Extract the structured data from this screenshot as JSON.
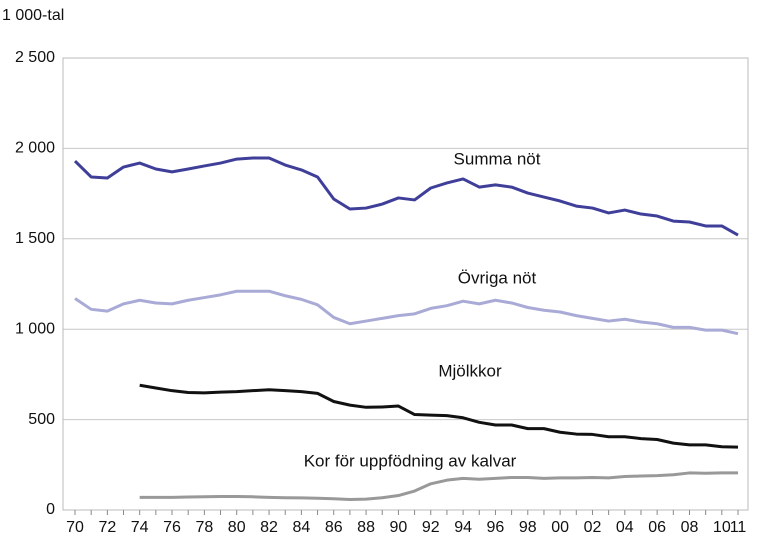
{
  "chart_data": {
    "type": "line",
    "ylabel": "1 000-tal",
    "categories": [
      "70",
      null,
      "72",
      null,
      "74",
      null,
      "76",
      null,
      "78",
      null,
      "80",
      null,
      "82",
      null,
      "84",
      null,
      "86",
      null,
      "88",
      null,
      "90",
      null,
      "92",
      null,
      "94",
      null,
      "96",
      null,
      "98",
      null,
      "00",
      null,
      "02",
      null,
      "04",
      null,
      "06",
      null,
      "08",
      null,
      "10",
      "11"
    ],
    "ylim": [
      0,
      2500
    ],
    "yticks": [
      0,
      500,
      {
        "value": 1000,
        "label": "1 000"
      },
      {
        "value": 1500,
        "label": "1 500"
      },
      {
        "value": 2000,
        "label": "2 000"
      },
      {
        "value": 2500,
        "label": "2 500"
      }
    ],
    "grid": true,
    "series": [
      {
        "name": "Summa nöt",
        "color": "#3f3f9a",
        "values": [
          1930,
          1842,
          1836,
          1897,
          1919,
          1886,
          1870,
          1886,
          1903,
          1919,
          1941,
          1947,
          1947,
          1908,
          1881,
          1842,
          1720,
          1665,
          1670,
          1692,
          1726,
          1715,
          1781,
          1809,
          1831,
          1786,
          1798,
          1786,
          1753,
          1731,
          1709,
          1681,
          1670,
          1643,
          1659,
          1637,
          1626,
          1598,
          1593,
          1571,
          1571,
          1521
        ]
      },
      {
        "name": "Övriga nöt",
        "color": "#a9abd6",
        "values": [
          1170,
          1110,
          1100,
          1140,
          1160,
          1145,
          1140,
          1160,
          1175,
          1190,
          1210,
          1210,
          1210,
          1185,
          1165,
          1135,
          1065,
          1030,
          1045,
          1060,
          1075,
          1085,
          1115,
          1130,
          1155,
          1140,
          1160,
          1145,
          1120,
          1105,
          1095,
          1075,
          1060,
          1045,
          1055,
          1040,
          1030,
          1010,
          1010,
          995,
          995,
          975
        ]
      },
      {
        "name": "Mjölkkor",
        "color": "#111111",
        "values": [
          null,
          null,
          null,
          null,
          690,
          675,
          660,
          650,
          648,
          652,
          655,
          660,
          665,
          660,
          655,
          645,
          600,
          580,
          568,
          570,
          575,
          528,
          525,
          522,
          510,
          485,
          470,
          470,
          450,
          450,
          430,
          420,
          418,
          405,
          405,
          395,
          390,
          370,
          360,
          360,
          350,
          348
        ]
      },
      {
        "name": "Kor för uppfödning av kalvar",
        "color": "#999999",
        "values": [
          null,
          null,
          null,
          null,
          70,
          70,
          70,
          72,
          73,
          75,
          75,
          73,
          70,
          68,
          67,
          65,
          62,
          58,
          60,
          68,
          80,
          105,
          145,
          165,
          175,
          170,
          175,
          180,
          180,
          175,
          178,
          178,
          180,
          178,
          185,
          188,
          190,
          195,
          205,
          203,
          205,
          205
        ]
      }
    ]
  }
}
